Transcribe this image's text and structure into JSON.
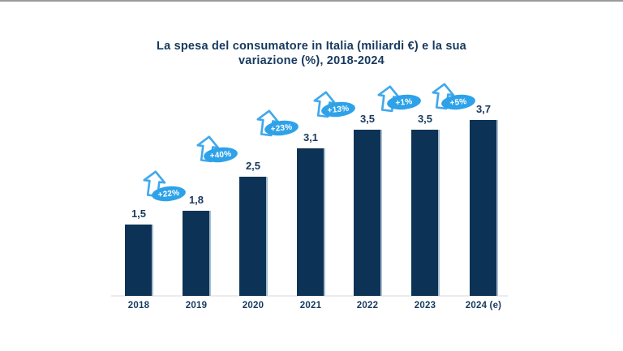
{
  "page": {
    "background": "#ffffff",
    "top_border_color": "#9b9b9b"
  },
  "chart_data": {
    "type": "bar",
    "title": "La spesa del consumatore in Italia (miliardi €) e la sua variazione (%), 2018-2024",
    "title_line1": "La spesa del consumatore in Italia (miliardi €) e la sua",
    "title_line2": "variazione (%), 2018-2024",
    "categories": [
      "2018",
      "2019",
      "2020",
      "2021",
      "2022",
      "2023",
      "2024 (e)"
    ],
    "values": [
      1.5,
      1.8,
      2.5,
      3.1,
      3.5,
      3.5,
      3.7
    ],
    "value_labels": [
      "1,5",
      "1,8",
      "2,5",
      "3,1",
      "3,5",
      "3,5",
      "3,7"
    ],
    "growth_labels": [
      "+22%",
      "+40%",
      "+23%",
      "+13%",
      "+1%",
      "+5%"
    ],
    "unit": "miliardi €",
    "xlabel": "",
    "ylabel": "",
    "ylim": [
      0,
      4
    ],
    "grid": false,
    "legend": false,
    "colors": {
      "bar": "#0c3355",
      "bar_edge": "#a7bdd1",
      "label_text": "#17395f",
      "badge_fill": "#2ea2e9",
      "badge_text": "#ffffff",
      "arrow_stroke": "#41a8ec",
      "arrow_fill": "#ffffff",
      "axis_line": "#ebebef"
    }
  }
}
